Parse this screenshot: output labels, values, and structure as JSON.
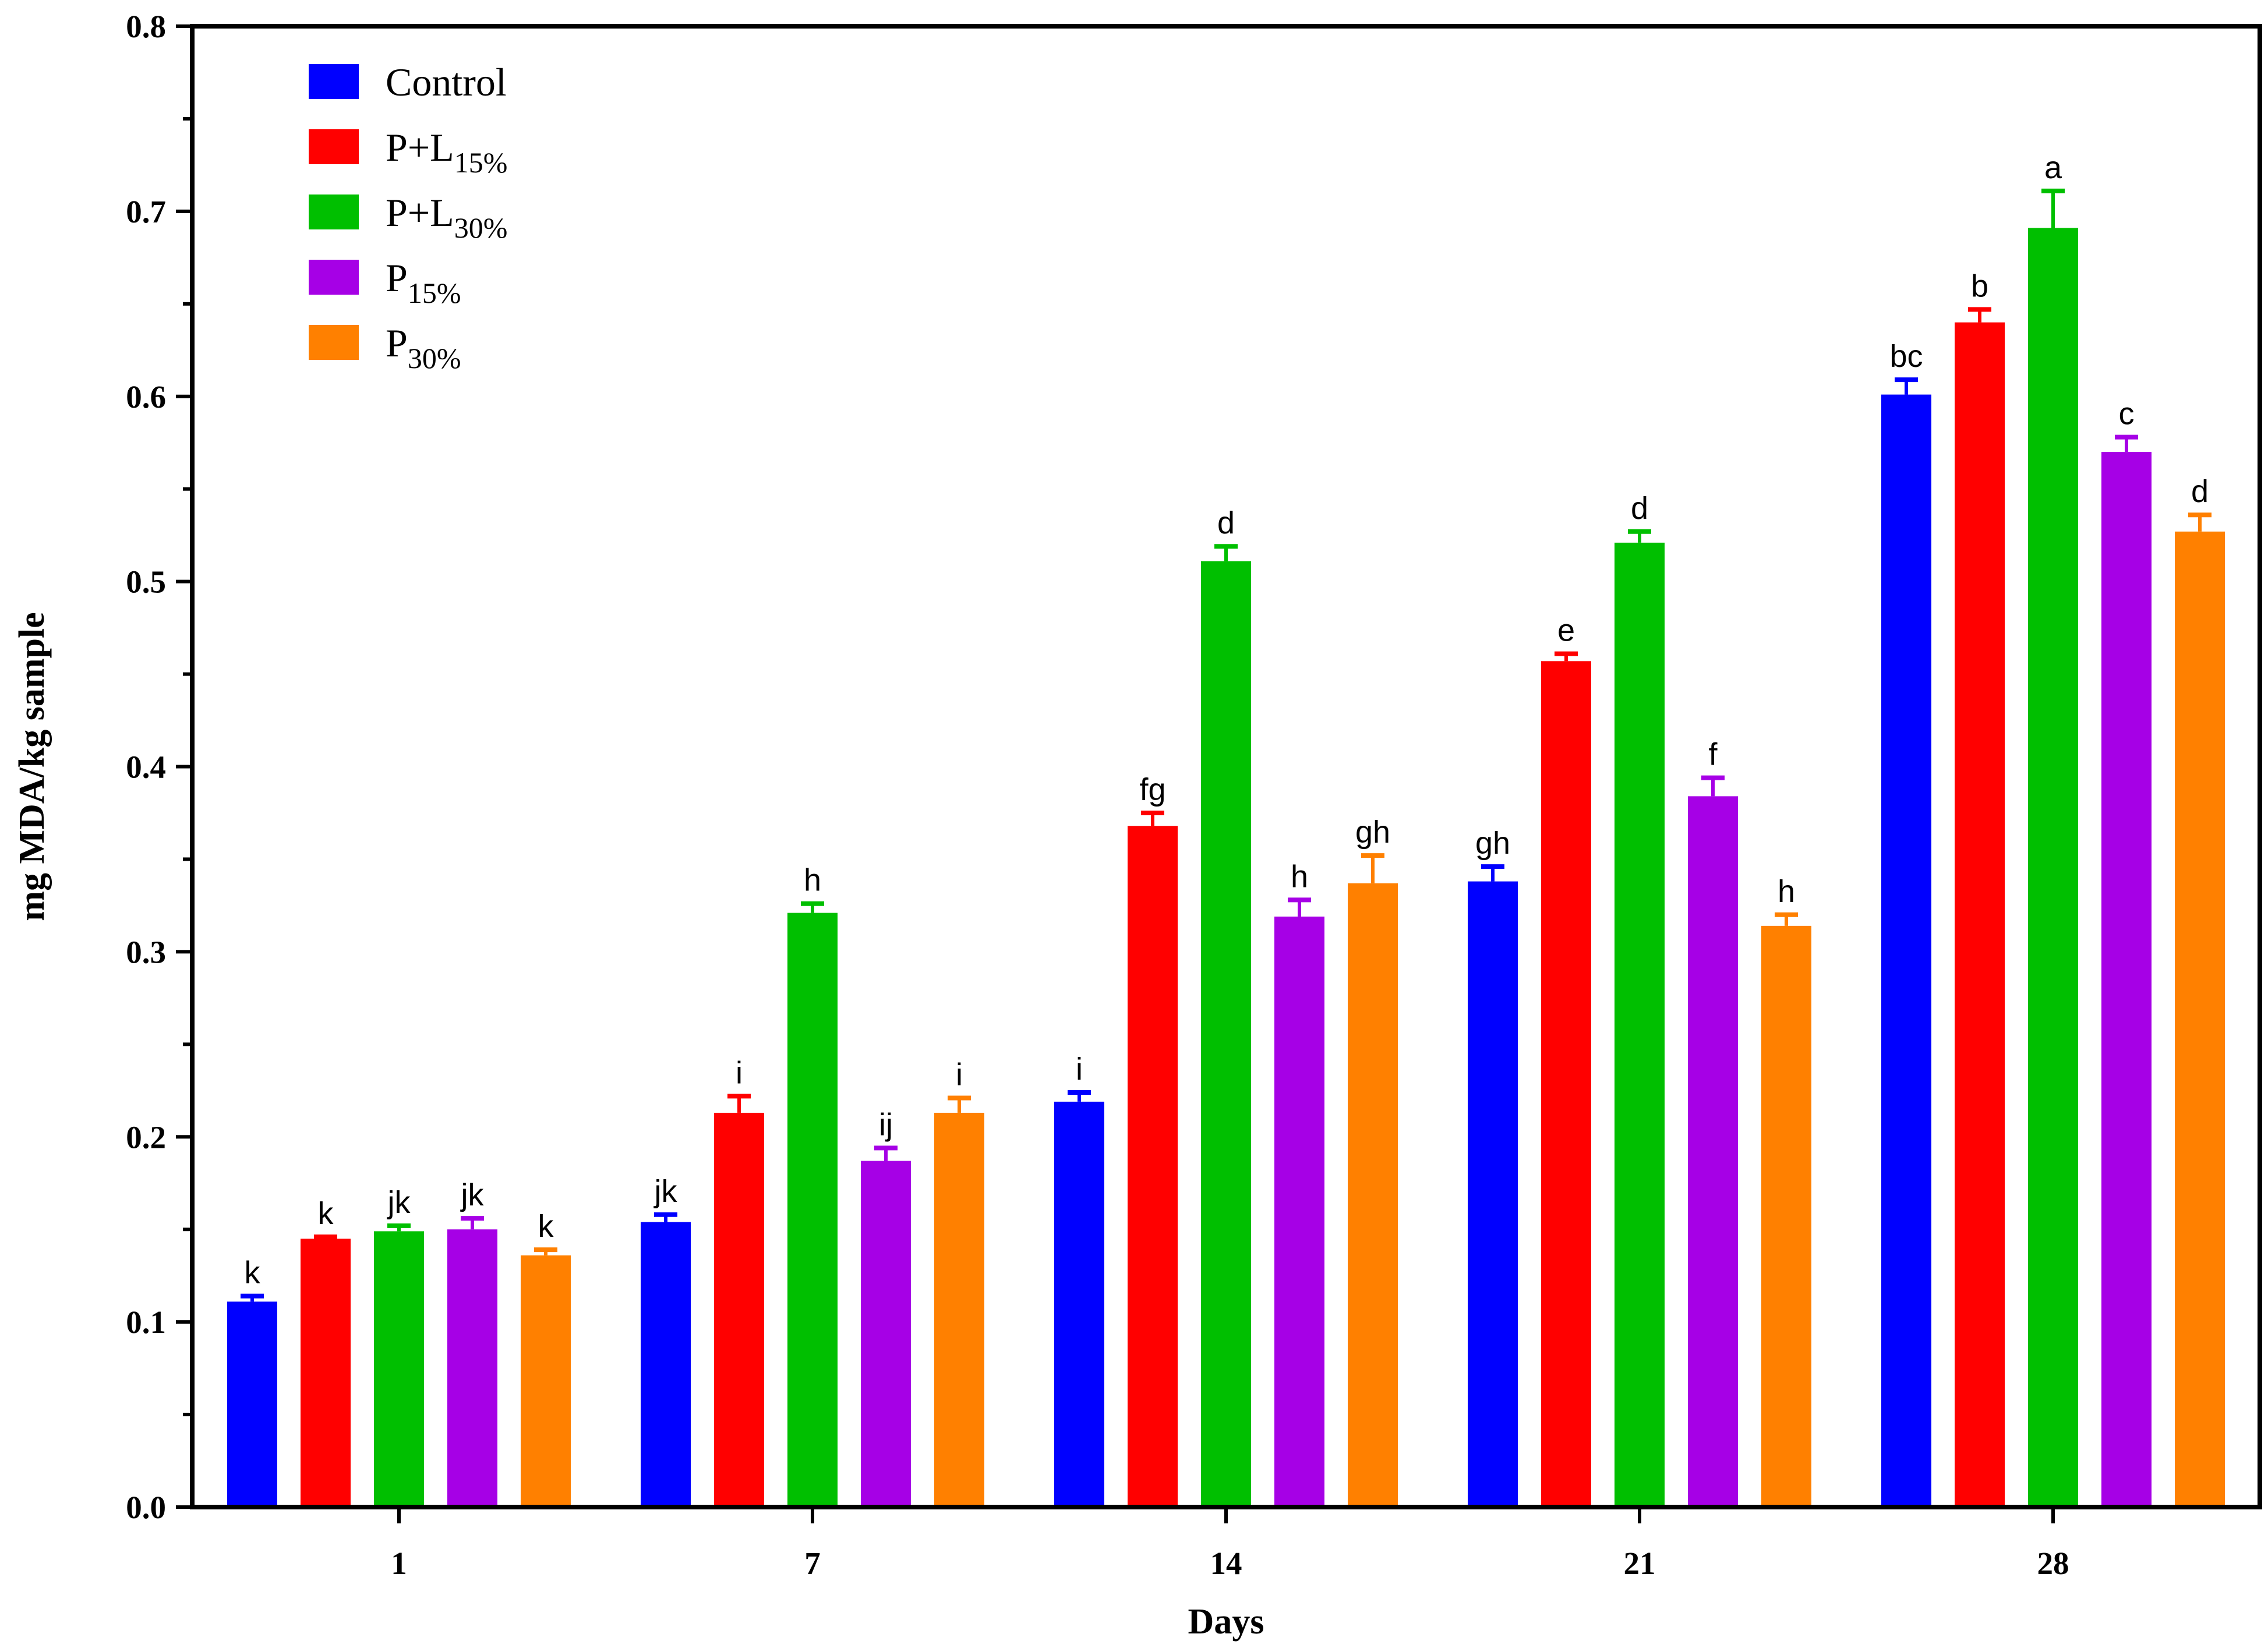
{
  "chart_data": {
    "type": "bar",
    "title": "",
    "xlabel": "Days",
    "ylabel": "mg MDA/kg sample",
    "ylim": [
      0,
      0.8
    ],
    "yticks": [
      "0.0",
      "0.1",
      "0.2",
      "0.3",
      "0.4",
      "0.5",
      "0.6",
      "0.7",
      "0.8"
    ],
    "categories": [
      "1",
      "7",
      "14",
      "21",
      "28"
    ],
    "grid": false,
    "legend_position": "top-left",
    "series": [
      {
        "name": "Control",
        "base": "Control",
        "sub": "",
        "color": "#0000FF",
        "values": [
          0.111,
          0.154,
          0.219,
          0.338,
          0.601
        ],
        "errors": [
          0.003,
          0.004,
          0.005,
          0.008,
          0.008
        ],
        "letters": [
          "k",
          "jk",
          "i",
          "gh",
          "bc"
        ]
      },
      {
        "name": "P+L15%",
        "base": "P+L",
        "sub": "15%",
        "color": "#FF0000",
        "values": [
          0.145,
          0.213,
          0.368,
          0.457,
          0.64
        ],
        "errors": [
          0.001,
          0.009,
          0.007,
          0.004,
          0.007
        ],
        "letters": [
          "k",
          "i",
          "fg",
          "e",
          "b"
        ]
      },
      {
        "name": "P+L30%",
        "base": "P+L",
        "sub": "30%",
        "color": "#00BF00",
        "values": [
          0.149,
          0.321,
          0.511,
          0.521,
          0.691
        ],
        "errors": [
          0.003,
          0.005,
          0.008,
          0.006,
          0.02
        ],
        "letters": [
          "jk",
          "h",
          "d",
          "d",
          "a"
        ]
      },
      {
        "name": "P15%",
        "base": "P",
        "sub": "15%",
        "color": "#A600E6",
        "values": [
          0.15,
          0.187,
          0.319,
          0.384,
          0.57
        ],
        "errors": [
          0.006,
          0.007,
          0.009,
          0.01,
          0.008
        ],
        "letters": [
          "jk",
          "ij",
          "h",
          "f",
          "c"
        ]
      },
      {
        "name": "P30%",
        "base": "P",
        "sub": "30%",
        "color": "#FF8000",
        "values": [
          0.136,
          0.213,
          0.337,
          0.314,
          0.527
        ],
        "errors": [
          0.003,
          0.008,
          0.015,
          0.006,
          0.009
        ],
        "letters": [
          "k",
          "i",
          "gh",
          "h",
          "d"
        ]
      }
    ]
  }
}
